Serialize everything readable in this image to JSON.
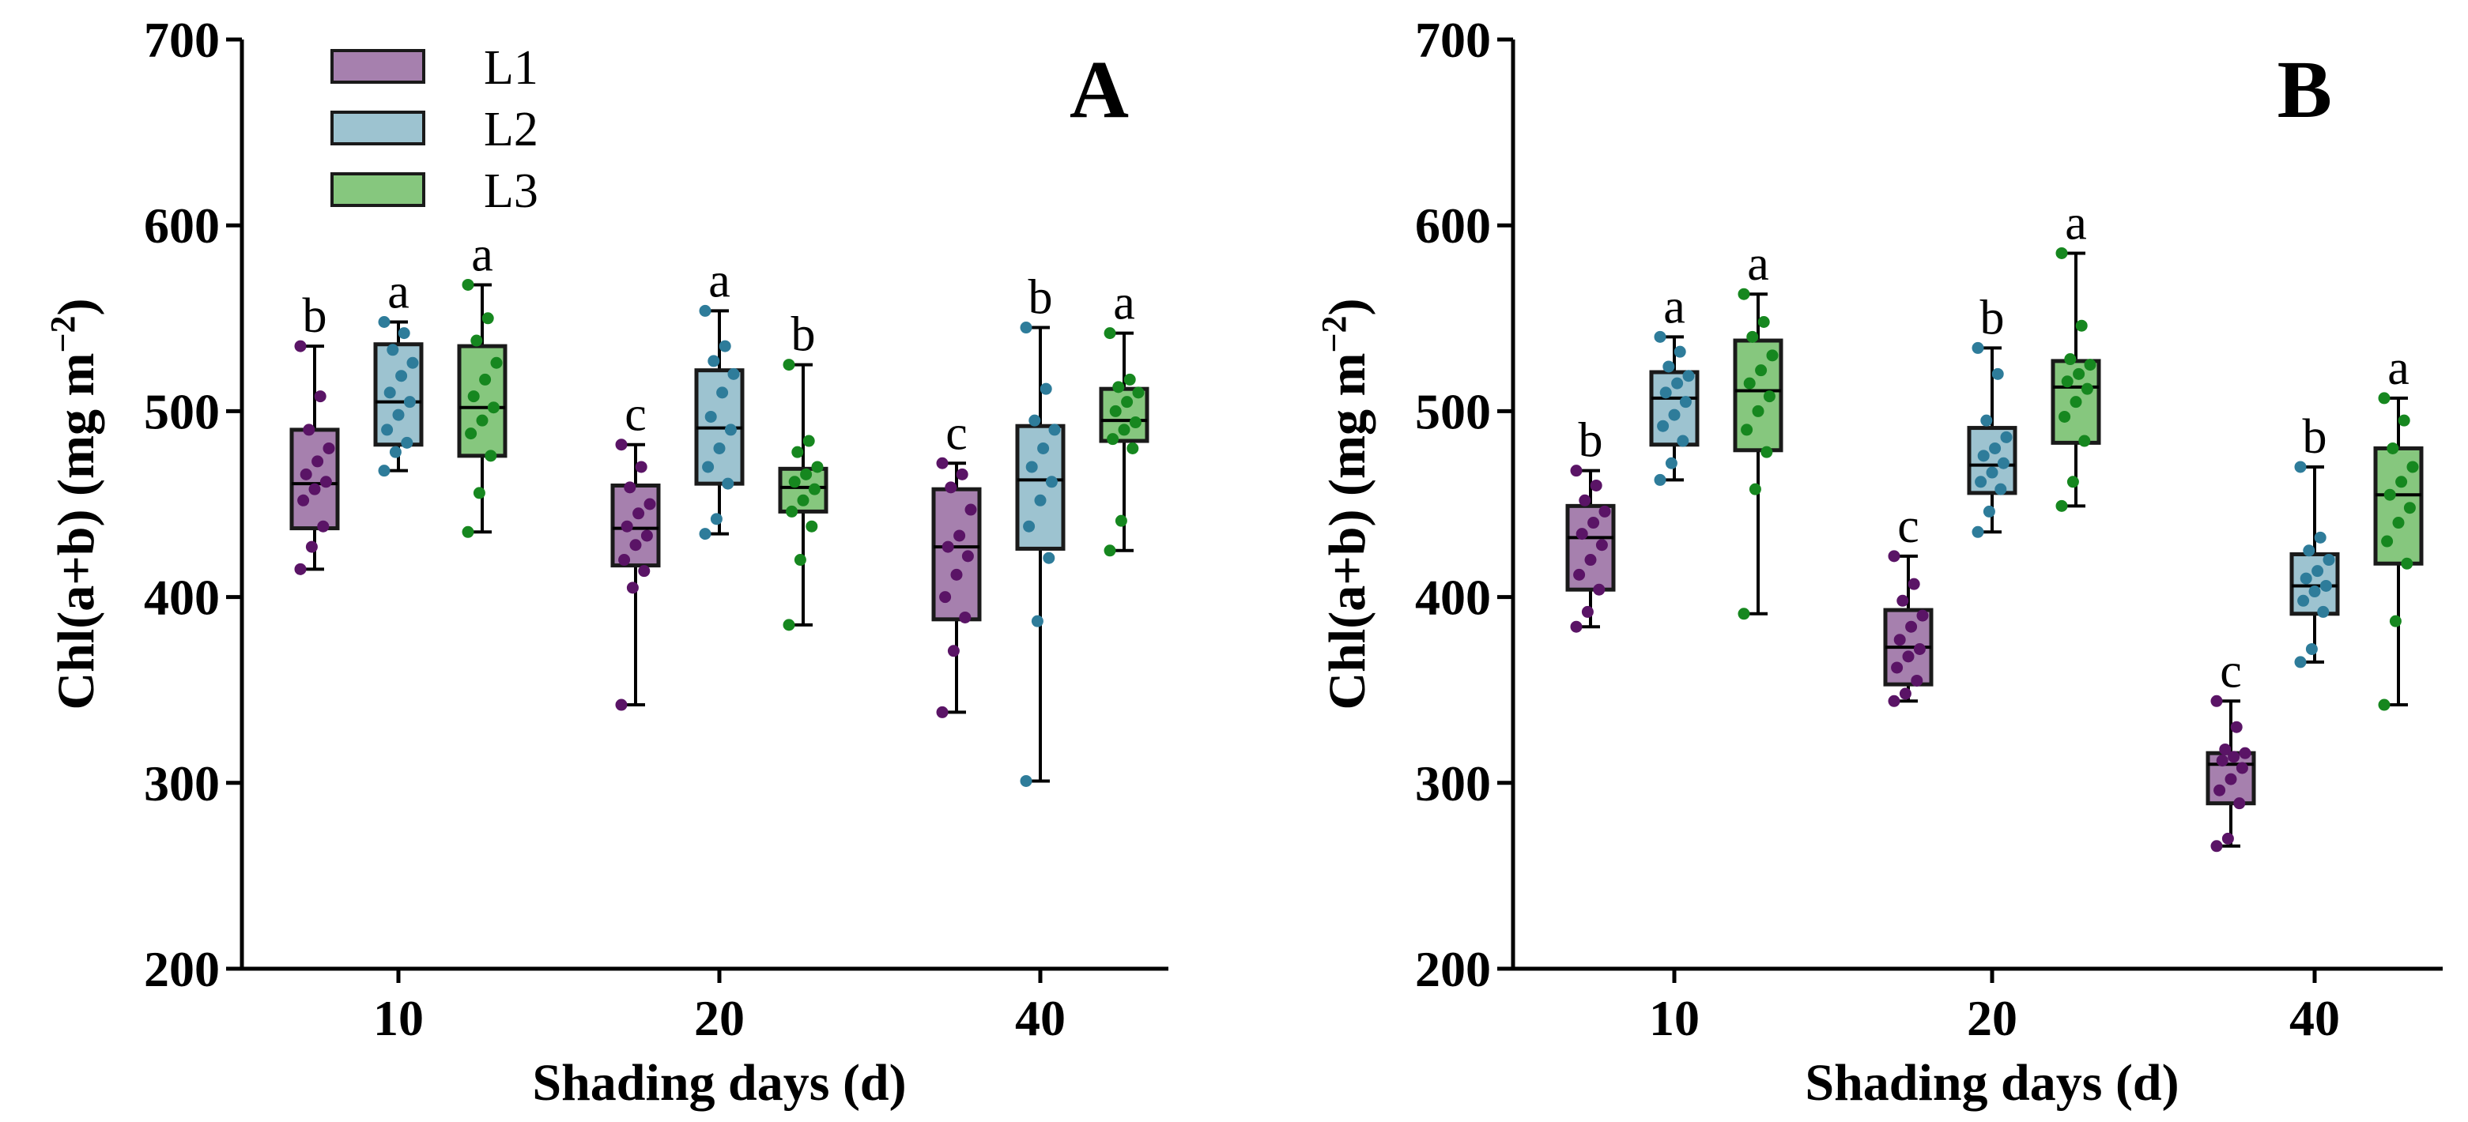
{
  "chart_data": [
    {
      "type": "box",
      "panel": "A",
      "xlabel": "Shading days (d)",
      "ylabel": "Chl(a+b) (mg m",
      "ylabel_sup": "−2",
      "ylabel_close": ")",
      "ylim": [
        200,
        700
      ],
      "yticks": [
        200,
        300,
        400,
        500,
        600,
        700
      ],
      "categories": [
        "10",
        "20",
        "40"
      ],
      "legend": {
        "position": "top-left",
        "entries": [
          "L1",
          "L2",
          "L3"
        ]
      },
      "series": [
        {
          "name": "L1",
          "color": "#A680AE",
          "edge": "#1a1a1a",
          "point_color": "#5A1466",
          "groups": [
            {
              "whisker_low": 415,
              "q1": 437,
              "median": 461,
              "q3": 490,
              "whisker_high": 535,
              "letter": "b",
              "points": [
                415,
                427,
                438,
                452,
                458,
                462,
                466,
                473,
                480,
                490,
                508,
                535
              ]
            },
            {
              "whisker_low": 342,
              "q1": 417,
              "median": 437,
              "q3": 460,
              "whisker_high": 482,
              "letter": "c",
              "points": [
                342,
                405,
                414,
                420,
                428,
                433,
                438,
                445,
                450,
                459,
                470,
                482
              ]
            },
            {
              "whisker_low": 338,
              "q1": 388,
              "median": 427,
              "q3": 458,
              "whisker_high": 472,
              "letter": "c",
              "points": [
                338,
                371,
                389,
                400,
                412,
                422,
                427,
                433,
                447,
                459,
                466,
                472
              ]
            }
          ]
        },
        {
          "name": "L2",
          "color": "#9DC3D0",
          "edge": "#1a1a1a",
          "point_color": "#2E7C9A",
          "groups": [
            {
              "whisker_low": 468,
              "q1": 482,
              "median": 505,
              "q3": 536,
              "whisker_high": 548,
              "letter": "a",
              "points": [
                468,
                478,
                483,
                490,
                498,
                505,
                510,
                519,
                526,
                533,
                542,
                548
              ]
            },
            {
              "whisker_low": 434,
              "q1": 461,
              "median": 491,
              "q3": 522,
              "whisker_high": 554,
              "letter": "a",
              "points": [
                434,
                442,
                461,
                470,
                480,
                490,
                497,
                510,
                520,
                527,
                535,
                554
              ]
            },
            {
              "whisker_low": 301,
              "q1": 426,
              "median": 463,
              "q3": 492,
              "whisker_high": 545,
              "letter": "b",
              "points": [
                301,
                387,
                421,
                438,
                452,
                462,
                470,
                480,
                490,
                495,
                512,
                545
              ]
            }
          ]
        },
        {
          "name": "L3",
          "color": "#86C77E",
          "edge": "#1a1a1a",
          "point_color": "#16871F",
          "groups": [
            {
              "whisker_low": 435,
              "q1": 476,
              "median": 502,
              "q3": 535,
              "whisker_high": 568,
              "letter": "a",
              "points": [
                435,
                456,
                476,
                488,
                495,
                502,
                508,
                517,
                526,
                538,
                550,
                568
              ]
            },
            {
              "whisker_low": 385,
              "q1": 446,
              "median": 459,
              "q3": 469,
              "whisker_high": 525,
              "letter": "b",
              "points": [
                385,
                420,
                438,
                446,
                452,
                458,
                462,
                466,
                470,
                478,
                484,
                525
              ]
            },
            {
              "whisker_low": 425,
              "q1": 484,
              "median": 495,
              "q3": 512,
              "whisker_high": 542,
              "letter": "a",
              "points": [
                425,
                441,
                480,
                485,
                490,
                494,
                500,
                505,
                510,
                513,
                517,
                542
              ]
            }
          ]
        }
      ]
    },
    {
      "type": "box",
      "panel": "B",
      "xlabel": "Shading days (d)",
      "ylabel": "Chl(a+b) (mg m",
      "ylabel_sup": "−2",
      "ylabel_close": ")",
      "ylim": [
        200,
        700
      ],
      "yticks": [
        200,
        300,
        400,
        500,
        600,
        700
      ],
      "categories": [
        "10",
        "20",
        "40"
      ],
      "series": [
        {
          "name": "L1",
          "color": "#A680AE",
          "edge": "#1a1a1a",
          "point_color": "#5A1466",
          "groups": [
            {
              "whisker_low": 384,
              "q1": 404,
              "median": 432,
              "q3": 449,
              "whisker_high": 468,
              "letter": "b",
              "points": [
                384,
                392,
                404,
                412,
                420,
                428,
                434,
                440,
                446,
                452,
                460,
                468
              ]
            },
            {
              "whisker_low": 344,
              "q1": 353,
              "median": 373,
              "q3": 393,
              "whisker_high": 422,
              "letter": "c",
              "points": [
                344,
                348,
                355,
                362,
                368,
                372,
                377,
                384,
                390,
                398,
                407,
                422
              ]
            },
            {
              "whisker_low": 266,
              "q1": 289,
              "median": 310,
              "q3": 316,
              "whisker_high": 344,
              "letter": "c",
              "points": [
                266,
                270,
                289,
                296,
                302,
                308,
                312,
                314,
                316,
                318,
                330,
                344
              ]
            }
          ]
        },
        {
          "name": "L2",
          "color": "#9DC3D0",
          "edge": "#1a1a1a",
          "point_color": "#2E7C9A",
          "groups": [
            {
              "whisker_low": 463,
              "q1": 482,
              "median": 507,
              "q3": 521,
              "whisker_high": 540,
              "letter": "a",
              "points": [
                463,
                472,
                484,
                492,
                498,
                505,
                510,
                515,
                519,
                524,
                532,
                540
              ]
            },
            {
              "whisker_low": 435,
              "q1": 456,
              "median": 471,
              "q3": 491,
              "whisker_high": 534,
              "letter": "b",
              "points": [
                435,
                446,
                458,
                462,
                467,
                472,
                476,
                480,
                486,
                495,
                520,
                534
              ]
            },
            {
              "whisker_low": 365,
              "q1": 391,
              "median": 406,
              "q3": 423,
              "whisker_high": 470,
              "letter": "b",
              "points": [
                365,
                372,
                392,
                398,
                403,
                406,
                410,
                414,
                420,
                425,
                432,
                470
              ]
            }
          ]
        },
        {
          "name": "L3",
          "color": "#86C77E",
          "edge": "#1a1a1a",
          "point_color": "#16871F",
          "groups": [
            {
              "whisker_low": 391,
              "q1": 479,
              "median": 511,
              "q3": 538,
              "whisker_high": 563,
              "letter": "a",
              "points": [
                391,
                458,
                478,
                490,
                500,
                508,
                515,
                522,
                530,
                540,
                548,
                563
              ]
            },
            {
              "whisker_low": 449,
              "q1": 483,
              "median": 513,
              "q3": 527,
              "whisker_high": 585,
              "letter": "a",
              "points": [
                449,
                462,
                484,
                497,
                505,
                512,
                516,
                520,
                525,
                528,
                546,
                585
              ]
            },
            {
              "whisker_low": 342,
              "q1": 418,
              "median": 455,
              "q3": 480,
              "whisker_high": 507,
              "letter": "a",
              "points": [
                342,
                387,
                418,
                430,
                440,
                448,
                455,
                462,
                470,
                480,
                495,
                507
              ]
            }
          ]
        }
      ]
    }
  ]
}
